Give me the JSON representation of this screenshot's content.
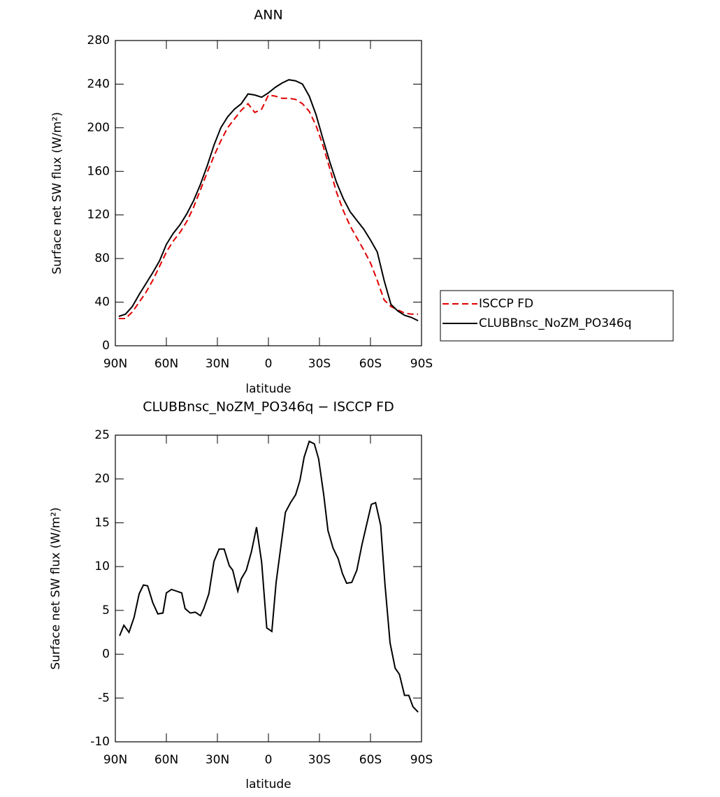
{
  "chart_data": [
    {
      "type": "line",
      "title": "ANN",
      "xlabel": "latitude",
      "ylabel": "Surface net SW flux (W/m²)",
      "x": [
        88,
        84,
        80,
        76,
        72,
        68,
        64,
        60,
        56,
        52,
        48,
        44,
        40,
        36,
        32,
        28,
        24,
        20,
        16,
        12,
        8,
        4,
        0,
        -4,
        -8,
        -12,
        -16,
        -20,
        -24,
        -28,
        -32,
        -36,
        -40,
        -44,
        -48,
        -52,
        -56,
        -60,
        -64,
        -68,
        -72,
        -76,
        -80,
        -84,
        -88
      ],
      "series": [
        {
          "name": "ISCCP FD",
          "color": "#e00000",
          "line_style": "dashed",
          "values": [
            25,
            25,
            31,
            40,
            49,
            60,
            73,
            86,
            96,
            104,
            114,
            127,
            143,
            159,
            174,
            188,
            200,
            208,
            216,
            222,
            214,
            217,
            230,
            229,
            227,
            227,
            226,
            222,
            215,
            202,
            184,
            163,
            141,
            124,
            110,
            99,
            88,
            76,
            60,
            42,
            36,
            33,
            30,
            29,
            29
          ]
        },
        {
          "name": "CLUBBnsc_NoZM_PO346q",
          "color": "#000000",
          "line_style": "solid",
          "values": [
            27,
            29,
            36,
            47,
            57,
            67,
            78,
            93,
            103,
            111,
            121,
            133,
            148,
            165,
            184,
            200,
            210,
            217,
            222,
            231,
            230,
            228,
            232,
            237,
            241,
            244,
            243,
            240,
            229,
            212,
            190,
            169,
            150,
            135,
            123,
            115,
            107,
            97,
            86,
            60,
            38,
            32,
            28,
            26,
            23
          ]
        }
      ],
      "xlim": [
        90,
        -90
      ],
      "xticks": [
        {
          "value": 90,
          "label": "90N"
        },
        {
          "value": 60,
          "label": "60N"
        },
        {
          "value": 30,
          "label": "30N"
        },
        0,
        {
          "value": -30,
          "label": "30S"
        },
        {
          "value": -60,
          "label": "60S"
        },
        {
          "value": -90,
          "label": "90S"
        }
      ],
      "ylim": [
        0,
        280
      ],
      "yticks": [
        0,
        40,
        80,
        120,
        160,
        200,
        240,
        280
      ],
      "legend": "outside-right"
    },
    {
      "type": "line",
      "title": "CLUBBnsc_NoZM_PO346q − ISCCP FD",
      "xlabel": "latitude",
      "ylabel": "Surface net SW flux (W/m²)",
      "x": [
        87.5,
        85,
        82,
        79,
        76,
        73.5,
        71,
        68,
        65,
        62,
        60,
        57,
        51,
        49,
        46,
        43,
        40,
        38,
        35,
        32,
        29,
        26,
        23,
        21,
        18,
        16,
        13,
        10,
        7,
        4,
        1,
        -2,
        -4.5,
        -7.5,
        -10,
        -13,
        -16,
        -18.5,
        -21,
        -24,
        -27,
        -29.5,
        -32.5,
        -35,
        -38,
        -41,
        -43.5,
        -46,
        -49,
        -52,
        -55,
        -58,
        -60.5,
        -63,
        -66,
        -68.5,
        -71.5,
        -74.5,
        -77,
        -80,
        -82.5,
        -85,
        -88
      ],
      "values": [
        2.1,
        3.3,
        2.5,
        4.2,
        6.9,
        7.9,
        7.8,
        5.9,
        4.6,
        4.7,
        7.0,
        7.4,
        7.0,
        5.2,
        4.7,
        4.8,
        4.4,
        5.2,
        6.9,
        10.6,
        12.0,
        12.0,
        10.1,
        9.6,
        7.2,
        8.6,
        9.6,
        11.7,
        14.5,
        10.5,
        3.0,
        2.6,
        8.2,
        12.6,
        16.2,
        17.3,
        18.2,
        19.8,
        22.5,
        24.3,
        24.0,
        22.3,
        18.2,
        14.1,
        12.1,
        10.9,
        9.2,
        8.1,
        8.2,
        9.6,
        12.5,
        15.0,
        17.1,
        17.3,
        14.7,
        8.0,
        1.3,
        -1.6,
        -2.3,
        -4.7,
        -4.7,
        -6.0,
        -6.6
      ],
      "color": "#000000",
      "xlim": [
        90,
        -90
      ],
      "xticks": [
        {
          "value": 90,
          "label": "90N"
        },
        {
          "value": 60,
          "label": "60N"
        },
        {
          "value": 30,
          "label": "30N"
        },
        0,
        {
          "value": -30,
          "label": "30S"
        },
        {
          "value": -60,
          "label": "60S"
        },
        {
          "value": -90,
          "label": "90S"
        }
      ],
      "ylim": [
        -10,
        25
      ],
      "yticks": [
        -10,
        -5,
        0,
        5,
        10,
        15,
        20,
        25
      ]
    }
  ]
}
